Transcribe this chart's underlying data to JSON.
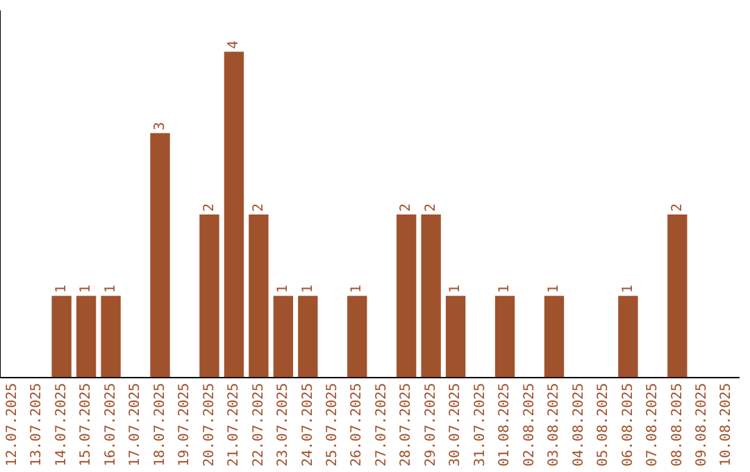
{
  "chart_data": {
    "type": "bar",
    "categories": [
      "12.07.2025",
      "13.07.2025",
      "14.07.2025",
      "15.07.2025",
      "16.07.2025",
      "17.07.2025",
      "18.07.2025",
      "19.07.2025",
      "20.07.2025",
      "21.07.2025",
      "22.07.2025",
      "23.07.2025",
      "24.07.2025",
      "25.07.2025",
      "26.07.2025",
      "27.07.2025",
      "28.07.2025",
      "29.07.2025",
      "30.07.2025",
      "31.07.2025",
      "01.08.2025",
      "02.08.2025",
      "03.08.2025",
      "04.08.2025",
      "05.08.2025",
      "06.08.2025",
      "07.08.2025",
      "08.08.2025",
      "09.08.2025",
      "10.08.2025"
    ],
    "values": [
      0,
      0,
      1,
      1,
      1,
      0,
      3,
      0,
      2,
      4,
      2,
      1,
      1,
      0,
      1,
      0,
      2,
      2,
      1,
      0,
      1,
      0,
      1,
      0,
      0,
      1,
      0,
      2,
      0,
      0
    ],
    "value_labels": [
      null,
      null,
      "1",
      "1",
      "1",
      null,
      "3",
      null,
      "2",
      "4",
      "2",
      "1",
      "1",
      null,
      "1",
      null,
      "2",
      "2",
      "1",
      null,
      "1",
      null,
      "1",
      null,
      null,
      "1",
      null,
      "2",
      null,
      null
    ],
    "color": "#a0522d",
    "grid": false,
    "legend": false
  }
}
